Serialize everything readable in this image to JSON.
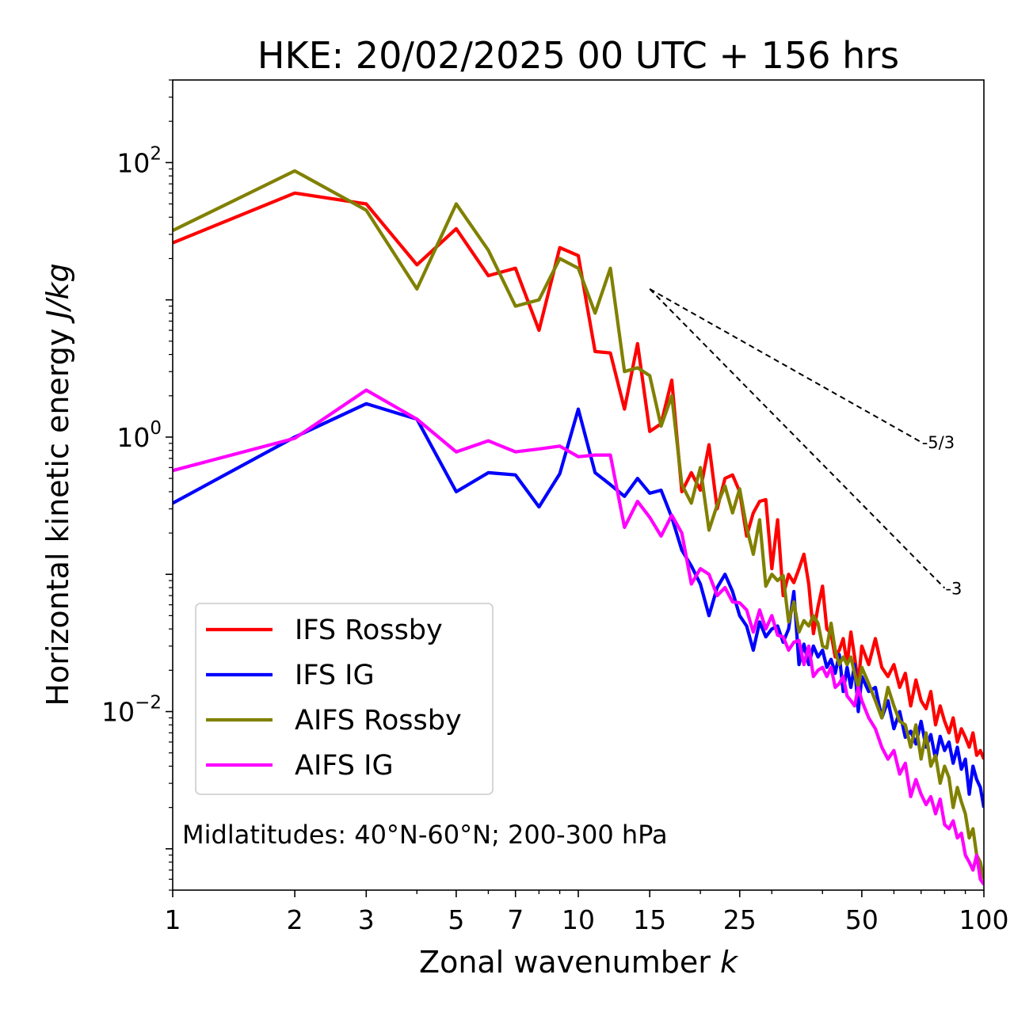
{
  "chart_data": {
    "type": "line",
    "title": "HKE: 20/02/2025 00 UTC + 156 hrs",
    "xlabel": "Zonal wavenumber",
    "xlabel_var": "k",
    "ylabel": "Horizontal kinetic energy",
    "ylabel_unit": "J/kg",
    "xscale": "log",
    "yscale": "log",
    "xlim": [
      1,
      100
    ],
    "ylim": [
      0.0005,
      400
    ],
    "xticks": [
      1,
      2,
      3,
      5,
      7,
      10,
      15,
      25,
      50,
      100
    ],
    "xtick_labels": [
      "1",
      "2",
      "3",
      "5",
      "7",
      "10",
      "15",
      "25",
      "50",
      "100"
    ],
    "yticks": [
      {
        "value": 100,
        "base": "10",
        "exp": "2"
      },
      {
        "value": 1,
        "base": "10",
        "exp": "0"
      },
      {
        "value": 0.01,
        "base": "10",
        "exp": "−2"
      }
    ],
    "annotation": "Midlatitudes: 40°N-60°N; 200-300 hPa",
    "legend_position": "lower-left",
    "reference_slopes": [
      {
        "label": "-5/3",
        "slope": -1.6667,
        "x": [
          15,
          70
        ],
        "y": [
          12,
          0.92
        ]
      },
      {
        "label": "-3",
        "slope": -3,
        "x": [
          15,
          80
        ],
        "y": [
          12,
          0.0795
        ]
      }
    ],
    "series": [
      {
        "name": "IFS Rossby",
        "color": "#ff0000",
        "x": [
          1,
          2,
          3,
          4,
          5,
          6,
          7,
          8,
          9,
          10,
          11,
          12,
          13,
          14,
          15,
          16,
          17,
          18,
          19,
          20,
          21,
          22,
          23,
          24,
          25,
          26,
          27,
          28,
          29,
          30,
          31,
          32,
          33,
          34,
          35,
          36,
          37,
          38,
          39,
          40,
          41,
          42,
          43,
          44,
          45,
          46,
          47,
          48,
          49,
          50,
          52,
          54,
          56,
          58,
          60,
          62,
          64,
          66,
          68,
          70,
          72,
          74,
          76,
          78,
          80,
          82,
          84,
          86,
          88,
          90,
          92,
          94,
          96,
          98,
          100
        ],
        "y": [
          26,
          60,
          50,
          18,
          33,
          15,
          17,
          6,
          24,
          21,
          4.2,
          4.1,
          1.6,
          4.8,
          1.1,
          1.25,
          2.6,
          0.4,
          0.55,
          0.41,
          0.88,
          0.3,
          0.5,
          0.53,
          0.4,
          0.19,
          0.28,
          0.34,
          0.35,
          0.11,
          0.25,
          0.07,
          0.1,
          0.087,
          0.11,
          0.14,
          0.085,
          0.037,
          0.058,
          0.082,
          0.04,
          0.037,
          0.025,
          0.028,
          0.034,
          0.022,
          0.038,
          0.025,
          0.016,
          0.03,
          0.022,
          0.034,
          0.021,
          0.018,
          0.022,
          0.015,
          0.019,
          0.011,
          0.017,
          0.012,
          0.0105,
          0.014,
          0.008,
          0.011,
          0.0085,
          0.007,
          0.009,
          0.006,
          0.0075,
          0.0065,
          0.0055,
          0.007,
          0.0048,
          0.0052,
          0.0045
        ]
      },
      {
        "name": "IFS IG",
        "color": "#0000ff",
        "x": [
          1,
          2,
          3,
          4,
          5,
          6,
          7,
          8,
          9,
          10,
          11,
          12,
          13,
          14,
          15,
          16,
          17,
          18,
          19,
          20,
          21,
          22,
          23,
          24,
          25,
          26,
          27,
          28,
          29,
          30,
          31,
          32,
          33,
          34,
          35,
          36,
          37,
          38,
          39,
          40,
          41,
          42,
          43,
          44,
          45,
          46,
          47,
          48,
          49,
          50,
          52,
          54,
          56,
          58,
          60,
          62,
          64,
          66,
          68,
          70,
          72,
          74,
          76,
          78,
          80,
          82,
          84,
          86,
          88,
          90,
          92,
          94,
          96,
          98,
          100
        ],
        "y": [
          0.33,
          1.0,
          1.75,
          1.35,
          0.4,
          0.55,
          0.53,
          0.31,
          0.54,
          1.6,
          0.55,
          0.45,
          0.37,
          0.5,
          0.39,
          0.41,
          0.26,
          0.15,
          0.115,
          0.085,
          0.05,
          0.08,
          0.1,
          0.075,
          0.05,
          0.042,
          0.028,
          0.045,
          0.035,
          0.04,
          0.042,
          0.032,
          0.04,
          0.075,
          0.022,
          0.031,
          0.022,
          0.03,
          0.025,
          0.028,
          0.021,
          0.024,
          0.019,
          0.026,
          0.014,
          0.021,
          0.015,
          0.022,
          0.01,
          0.018,
          0.014,
          0.015,
          0.009,
          0.012,
          0.0075,
          0.01,
          0.0065,
          0.0072,
          0.0058,
          0.0085,
          0.0055,
          0.0068,
          0.0045,
          0.0066,
          0.0052,
          0.006,
          0.0042,
          0.0055,
          0.0038,
          0.0045,
          0.0025,
          0.004,
          0.0032,
          0.0028,
          0.002
        ]
      },
      {
        "name": "AIFS Rossby",
        "color": "#808000",
        "x": [
          1,
          2,
          3,
          4,
          5,
          6,
          7,
          8,
          9,
          10,
          11,
          12,
          13,
          14,
          15,
          16,
          17,
          18,
          19,
          20,
          21,
          22,
          23,
          24,
          25,
          26,
          27,
          28,
          29,
          30,
          31,
          32,
          33,
          34,
          35,
          36,
          37,
          38,
          39,
          40,
          41,
          42,
          43,
          44,
          45,
          46,
          47,
          48,
          49,
          50,
          52,
          54,
          56,
          58,
          60,
          62,
          64,
          66,
          68,
          70,
          72,
          74,
          76,
          78,
          80,
          82,
          84,
          86,
          88,
          90,
          92,
          94,
          96,
          98,
          100
        ],
        "y": [
          32,
          87,
          45,
          12,
          50,
          23,
          9,
          10,
          20,
          17,
          8,
          17,
          3,
          3.2,
          2.8,
          1.2,
          2,
          0.45,
          0.33,
          0.6,
          0.21,
          0.32,
          0.44,
          0.28,
          0.42,
          0.22,
          0.14,
          0.25,
          0.082,
          0.1,
          0.09,
          0.098,
          0.045,
          0.063,
          0.038,
          0.046,
          0.042,
          0.05,
          0.044,
          0.03,
          0.029,
          0.044,
          0.028,
          0.022,
          0.025,
          0.022,
          0.025,
          0.019,
          0.015,
          0.021,
          0.016,
          0.012,
          0.009,
          0.015,
          0.011,
          0.0085,
          0.008,
          0.0055,
          0.008,
          0.0045,
          0.007,
          0.004,
          0.0048,
          0.003,
          0.004,
          0.0033,
          0.002,
          0.0028,
          0.0022,
          0.0018,
          0.0012,
          0.0014,
          0.0009,
          0.0008,
          0.0006
        ]
      },
      {
        "name": "AIFS IG",
        "color": "#ff00ff",
        "x": [
          1,
          2,
          3,
          4,
          5,
          6,
          7,
          8,
          9,
          10,
          11,
          12,
          13,
          14,
          15,
          16,
          17,
          18,
          19,
          20,
          21,
          22,
          23,
          24,
          25,
          26,
          27,
          28,
          29,
          30,
          31,
          32,
          33,
          34,
          35,
          36,
          37,
          38,
          39,
          40,
          41,
          42,
          43,
          44,
          45,
          46,
          47,
          48,
          49,
          50,
          52,
          54,
          56,
          58,
          60,
          62,
          64,
          66,
          68,
          70,
          72,
          74,
          76,
          78,
          80,
          82,
          84,
          86,
          88,
          90,
          92,
          94,
          96,
          98,
          100
        ],
        "y": [
          0.57,
          0.98,
          2.2,
          1.35,
          0.78,
          0.94,
          0.78,
          0.82,
          0.86,
          0.72,
          0.74,
          0.74,
          0.22,
          0.34,
          0.26,
          0.19,
          0.27,
          0.2,
          0.085,
          0.11,
          0.1,
          0.07,
          0.08,
          0.063,
          0.062,
          0.055,
          0.038,
          0.055,
          0.04,
          0.05,
          0.036,
          0.035,
          0.028,
          0.032,
          0.033,
          0.022,
          0.03,
          0.018,
          0.02,
          0.021,
          0.018,
          0.021,
          0.015,
          0.016,
          0.018,
          0.013,
          0.012,
          0.011,
          0.015,
          0.012,
          0.009,
          0.0075,
          0.0055,
          0.0045,
          0.0052,
          0.0035,
          0.0042,
          0.0024,
          0.0032,
          0.0025,
          0.0021,
          0.0024,
          0.0018,
          0.0023,
          0.0015,
          0.0014,
          0.0016,
          0.0012,
          0.0013,
          0.0009,
          0.0008,
          0.0007,
          0.0009,
          0.0006,
          0.00055
        ]
      }
    ]
  }
}
